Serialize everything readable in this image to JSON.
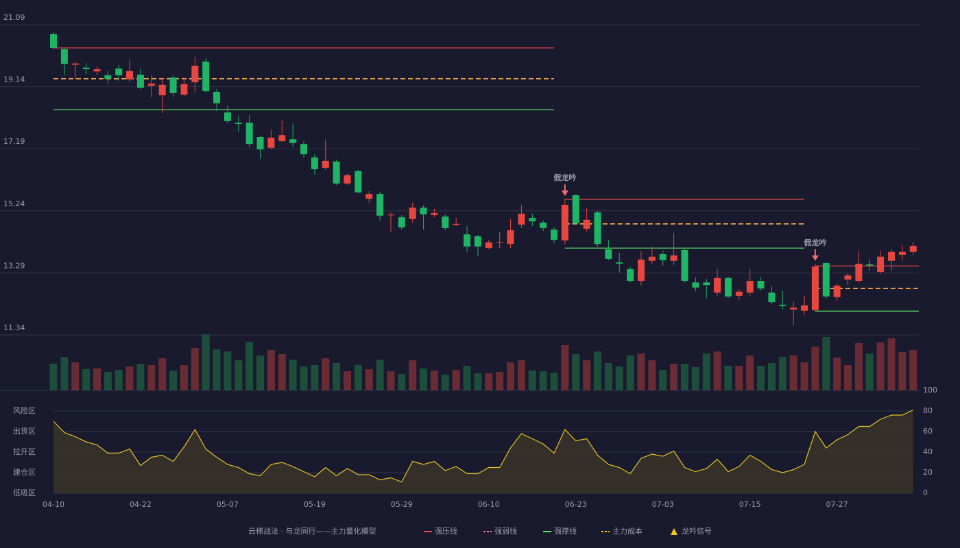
{
  "chart_data": {
    "type": "candlestick",
    "title": "云梯战法 · 与龙同行——主力量化模型",
    "categories": [
      "04-10",
      null,
      null,
      null,
      null,
      null,
      null,
      null,
      "04-22",
      null,
      null,
      null,
      null,
      null,
      null,
      null,
      "05-07",
      null,
      null,
      null,
      null,
      null,
      null,
      null,
      "05-19",
      null,
      null,
      null,
      null,
      null,
      null,
      null,
      "05-29",
      null,
      null,
      null,
      null,
      null,
      null,
      null,
      "06-10",
      null,
      null,
      null,
      null,
      null,
      null,
      null,
      "06-23",
      null,
      null,
      null,
      null,
      null,
      null,
      null,
      "07-03",
      null,
      null,
      null,
      null,
      null,
      null,
      null,
      "07-15",
      null,
      null,
      null,
      null,
      null,
      null,
      null,
      "07-27",
      null,
      null,
      null,
      null,
      null,
      null,
      null
    ],
    "open": [
      20.79,
      20.32,
      19.83,
      19.74,
      19.62,
      19.5,
      19.71,
      19.37,
      19.52,
      19.17,
      18.87,
      19.43,
      18.89,
      19.28,
      19.93,
      18.98,
      18.33,
      18.01,
      18.01,
      17.56,
      17.22,
      17.43,
      17.49,
      17.34,
      16.92,
      16.59,
      16.79,
      16.1,
      16.49,
      15.62,
      15.77,
      15.1,
      15.04,
      14.98,
      15.34,
      15.11,
      15.06,
      14.8,
      14.5,
      14.44,
      14.07,
      14.23,
      14.2,
      14.81,
      15.02,
      14.87,
      14.65,
      14.31,
      15.73,
      14.68,
      15.19,
      14.03,
      13.62,
      13.41,
      13.04,
      13.67,
      13.88,
      13.67,
      14.01,
      12.99,
      12.99,
      12.67,
      13.13,
      12.57,
      12.67,
      13.04,
      12.67,
      12.29,
      12.14,
      12.1,
      12.12,
      13.6,
      12.53,
      13.08,
      13.04,
      13.56,
      13.32,
      13.67,
      13.86,
      13.95
    ],
    "high": [
      20.85,
      20.36,
      19.93,
      19.88,
      19.78,
      19.65,
      19.82,
      19.97,
      19.71,
      19.5,
      19.43,
      19.5,
      19.39,
      20.08,
      20.04,
      19.07,
      18.53,
      18.21,
      18.25,
      17.6,
      17.78,
      18.08,
      17.99,
      17.43,
      17.02,
      17.49,
      16.85,
      16.42,
      16.53,
      15.86,
      15.84,
      15.19,
      15.11,
      15.49,
      15.41,
      15.3,
      15.13,
      15.02,
      14.76,
      14.48,
      14.33,
      14.59,
      14.98,
      15.43,
      15.15,
      14.94,
      14.72,
      15.62,
      15.77,
      15.34,
      15.24,
      14.33,
      13.92,
      13.47,
      13.97,
      14.1,
      13.99,
      14.55,
      14.05,
      13.15,
      13.1,
      13.41,
      13.17,
      12.78,
      13.41,
      13.15,
      12.87,
      12.72,
      12.4,
      12.57,
      13.58,
      13.62,
      12.96,
      13.28,
      13.97,
      13.73,
      13.99,
      14.03,
      14.16,
      14.25
    ],
    "low": [
      20.31,
      19.5,
      19.39,
      19.54,
      19.5,
      19.22,
      19.33,
      19.28,
      19.05,
      18.81,
      18.31,
      18.81,
      18.85,
      18.96,
      18.96,
      18.38,
      17.99,
      17.73,
      17.24,
      16.87,
      17.17,
      17.39,
      17.24,
      16.92,
      16.38,
      16.53,
      16.05,
      16.05,
      15.8,
      15.49,
      14.93,
      14.59,
      14.65,
      14.87,
      14.65,
      15.04,
      14.63,
      14.76,
      13.94,
      13.81,
      14.03,
      14.07,
      14.07,
      14.7,
      14.76,
      14.61,
      14.22,
      14.18,
      14.81,
      14.59,
      14.12,
      13.69,
      13.3,
      12.99,
      12.89,
      13.58,
      13.52,
      13.54,
      12.99,
      12.72,
      12.5,
      12.57,
      12.5,
      12.44,
      12.57,
      12.74,
      12.31,
      12.14,
      11.64,
      11.96,
      12.07,
      12.48,
      12.4,
      12.91,
      12.98,
      13.36,
      13.26,
      13.36,
      13.69,
      13.86
    ],
    "close": [
      20.36,
      19.86,
      19.87,
      19.69,
      19.69,
      19.39,
      19.5,
      19.63,
      19.11,
      19.24,
      19.2,
      18.94,
      19.22,
      19.8,
      19.0,
      18.62,
      18.06,
      17.97,
      17.34,
      17.17,
      17.54,
      17.62,
      17.37,
      17.02,
      16.55,
      16.81,
      16.1,
      16.36,
      15.82,
      15.77,
      15.09,
      15.12,
      14.72,
      15.34,
      15.13,
      15.17,
      14.7,
      14.83,
      14.12,
      14.12,
      14.25,
      14.25,
      14.63,
      15.15,
      14.91,
      14.7,
      14.33,
      15.43,
      14.85,
      14.96,
      14.2,
      13.73,
      13.58,
      13.04,
      13.71,
      13.8,
      13.69,
      13.84,
      13.04,
      12.83,
      12.91,
      13.13,
      12.55,
      12.7,
      13.04,
      12.8,
      12.37,
      12.25,
      12.2,
      12.27,
      13.49,
      12.55,
      12.89,
      13.21,
      13.58,
      13.52,
      13.8,
      13.95,
      13.95,
      14.14
    ],
    "up_color": "#e8473f",
    "down_color": "#1fb566",
    "up_volume_color": "#6a2c34",
    "down_volume_color": "#1d4e3c",
    "volume": [
      39,
      49,
      41,
      31,
      32,
      27,
      30,
      35,
      39,
      37,
      47,
      29,
      37,
      62,
      82,
      60,
      57,
      44,
      71,
      51,
      59,
      53,
      45,
      35,
      37,
      47,
      40,
      28,
      37,
      31,
      45,
      28,
      24,
      44,
      32,
      29,
      23,
      30,
      36,
      25,
      25,
      27,
      41,
      44,
      29,
      28,
      26,
      66,
      53,
      44,
      57,
      40,
      35,
      51,
      54,
      44,
      30,
      39,
      39,
      34,
      54,
      57,
      36,
      36,
      51,
      36,
      40,
      49,
      51,
      41,
      64,
      78,
      48,
      37,
      69,
      54,
      70,
      76,
      56,
      59
    ],
    "ylim": [
      11.34,
      21.09
    ],
    "yticks": [
      11.34,
      13.29,
      15.24,
      17.19,
      19.14,
      21.09
    ],
    "grid": true,
    "levels": [
      {
        "start": 0,
        "end": 46,
        "pressure": 20.36,
        "weak": 19.39,
        "cost": 19.39,
        "support": 18.42
      },
      {
        "start": 47,
        "end": 69,
        "pressure": 15.6,
        "weak": 14.83,
        "cost": 14.83,
        "support": 14.07
      },
      {
        "start": 70,
        "end": 79,
        "pressure": 13.51,
        "weak": 12.8,
        "cost": 12.8,
        "support": 12.09
      }
    ],
    "signals": [
      null,
      null,
      null,
      null,
      null,
      null,
      null,
      null,
      null,
      null,
      null,
      null,
      null,
      null,
      null,
      null,
      null,
      null,
      null,
      null,
      null,
      null,
      null,
      null,
      null,
      null,
      null,
      null,
      null,
      null,
      null,
      null,
      null,
      null,
      null,
      null,
      null,
      null,
      null,
      null,
      null,
      null,
      null,
      null,
      null,
      null,
      null,
      "假龙吟",
      null,
      null,
      null,
      null,
      null,
      null,
      null,
      null,
      null,
      null,
      null,
      null,
      null,
      null,
      null,
      null,
      null,
      null,
      null,
      null,
      null,
      null,
      "假龙吟",
      null,
      null,
      null,
      null,
      null,
      null,
      null,
      null,
      null
    ],
    "signal_color": "#f06a7a",
    "indicator": {
      "values": [
        70,
        59,
        55,
        50,
        47,
        39,
        39,
        43,
        27,
        35,
        37,
        31,
        45,
        62,
        43,
        35,
        28,
        25,
        19,
        17,
        28,
        30,
        26,
        21,
        16,
        25,
        17,
        24,
        18,
        18,
        13,
        15,
        11,
        31,
        28,
        31,
        22,
        26,
        19,
        19,
        25,
        25,
        44,
        58,
        53,
        48,
        39,
        62,
        51,
        53,
        37,
        28,
        25,
        19,
        34,
        38,
        36,
        41,
        25,
        21,
        24,
        33,
        21,
        26,
        37,
        31,
        23,
        20,
        23,
        28,
        60,
        44,
        52,
        57,
        65,
        65,
        72,
        76,
        76,
        81
      ],
      "color": "#e8c02a",
      "ylim": [
        0,
        100
      ],
      "yticks": [
        {
          "value": 0,
          "color": "#f05050"
        },
        {
          "value": 20,
          "color": "#f05050"
        },
        {
          "value": 40,
          "color": "#4a9eff"
        },
        {
          "value": 60,
          "color": "#e040fb"
        },
        {
          "value": 80,
          "color": "#e6a23c"
        },
        {
          "value": 100,
          "color": "#33e36a"
        }
      ],
      "zones": [
        {
          "label": "低吸区",
          "value": 0,
          "color": "#f0506e"
        },
        {
          "label": "建仓区",
          "value": 20,
          "color": "#f05050"
        },
        {
          "label": "拉升区",
          "value": 40,
          "color": "#4a9eff"
        },
        {
          "label": "出货区",
          "value": 60,
          "color": "#e040fb"
        },
        {
          "label": "风险区",
          "value": 80,
          "color": "#e6a23c"
        }
      ]
    },
    "legend": [
      {
        "name": "强压线",
        "key": "pressure",
        "color": "#f04848",
        "style": "solid"
      },
      {
        "name": "强弱线",
        "key": "weak",
        "color": "#ff8aa8",
        "style": "dashed"
      },
      {
        "name": "强撑线",
        "key": "support",
        "color": "#5ee86a",
        "style": "solid"
      },
      {
        "name": "主力成本",
        "key": "cost",
        "color": "#f5c518",
        "style": "dashed"
      },
      {
        "name": "龙吟信号",
        "key": "signal",
        "color": "#f5c518",
        "style": "triangle"
      }
    ],
    "title_color": "#e8c060"
  }
}
